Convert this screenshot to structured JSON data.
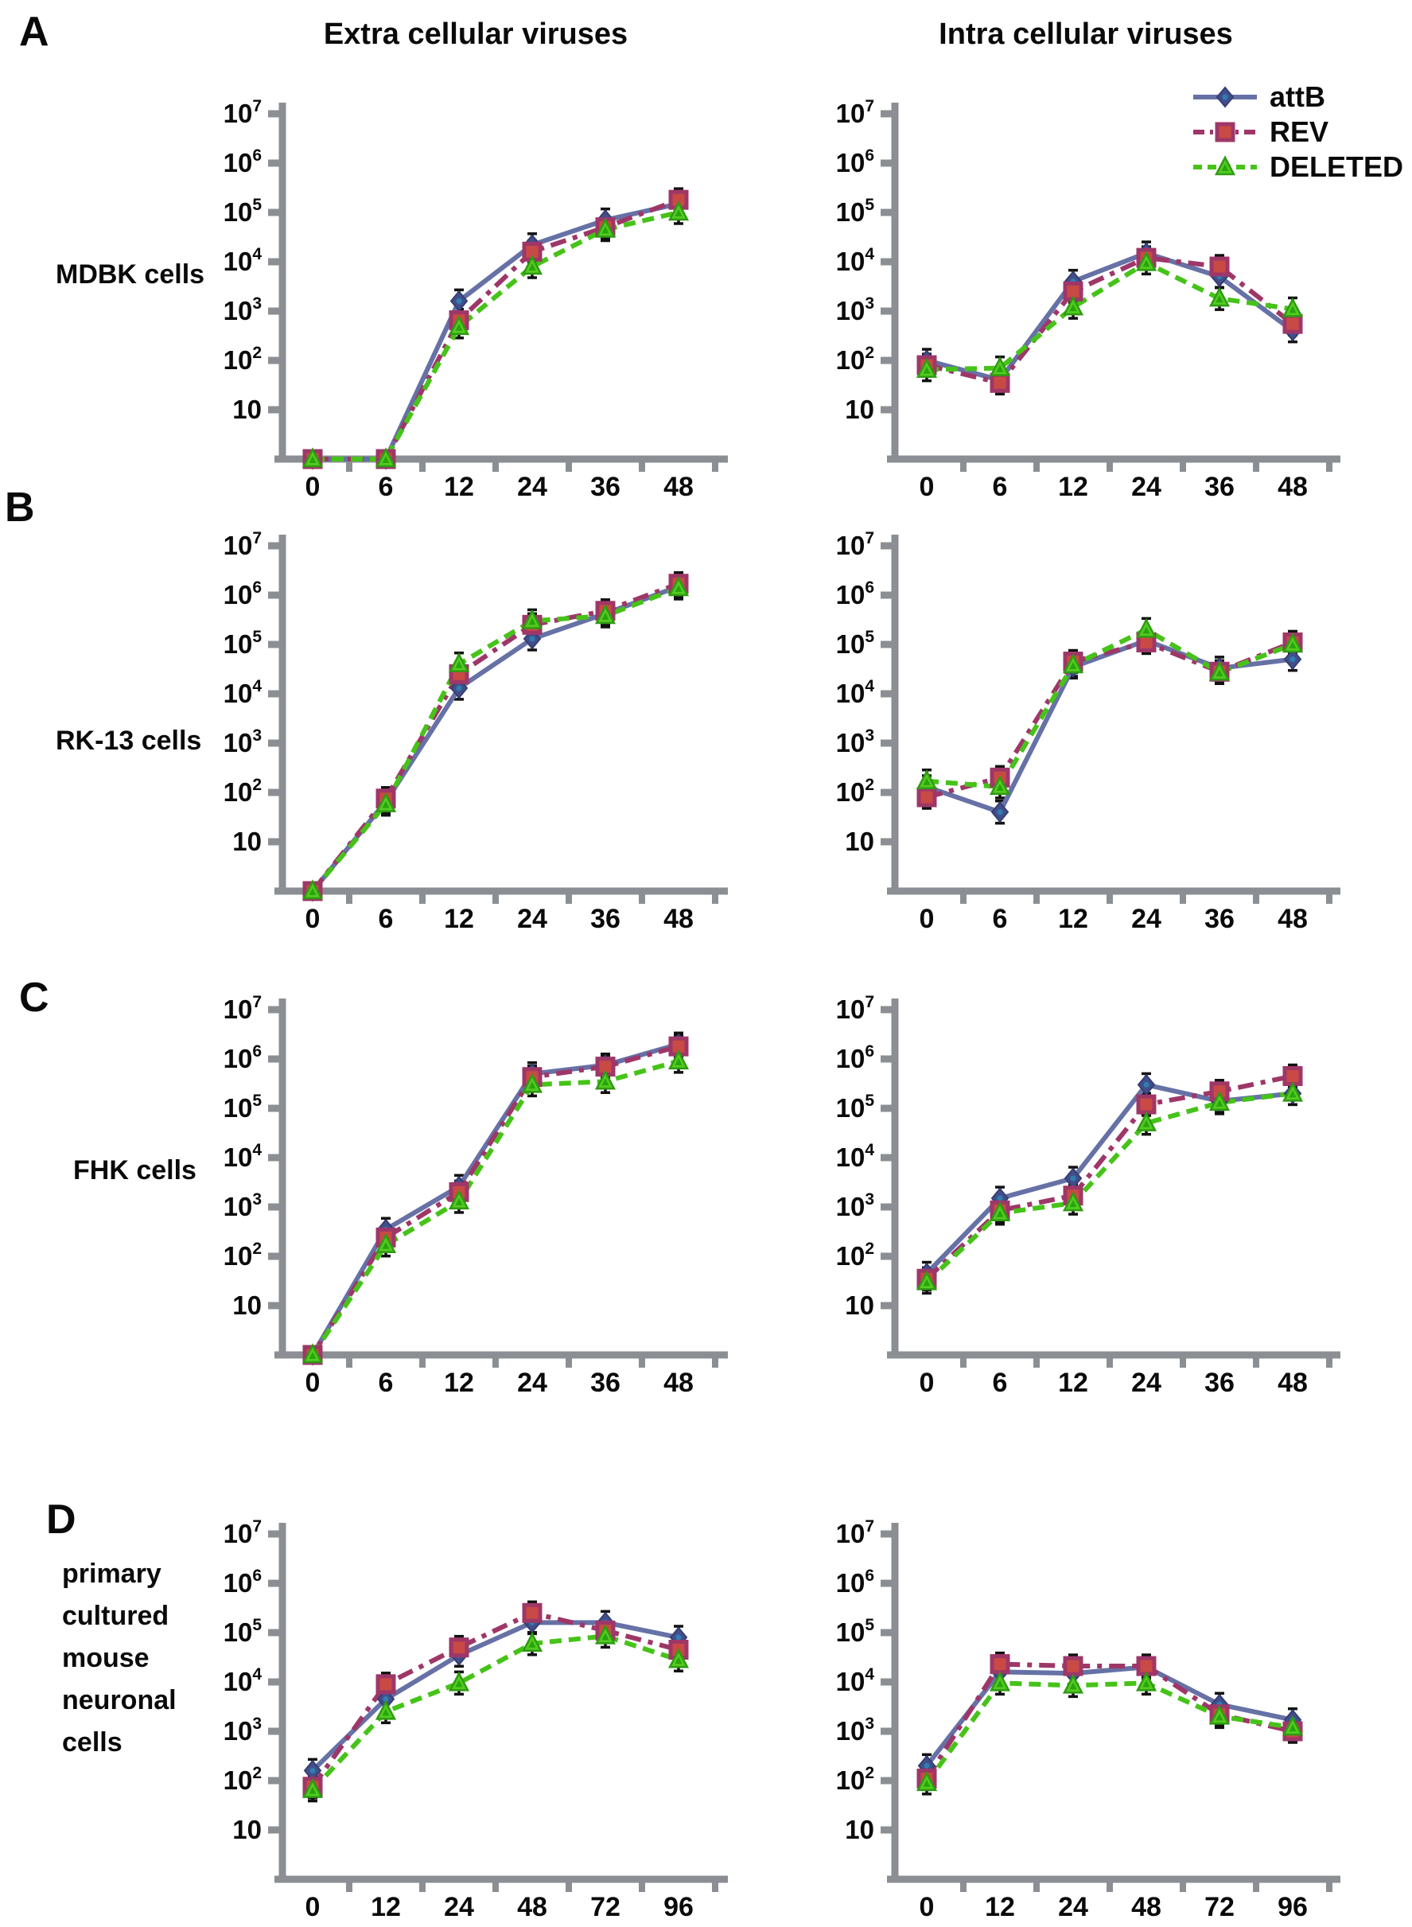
{
  "figure": {
    "panel_letters": [
      "A",
      "B",
      "C",
      "D"
    ],
    "column_titles": [
      "Extra cellular viruses",
      "Intra cellular viruses"
    ],
    "row_labels": [
      "MDBK cells",
      "RK-13 cells",
      "FHK cells"
    ],
    "row_d_label_lines": [
      "primary",
      "cultured",
      "mouse",
      "neuronal",
      "cells"
    ],
    "legend": [
      {
        "name": "attB",
        "line_color": "#6671a6",
        "dash": "solid",
        "marker": "diamond",
        "marker_fill": "#424e8c",
        "marker_stroke": "#353f72",
        "marker_inner": "#2f7fae"
      },
      {
        "name": "REV",
        "line_color": "#9e3768",
        "dash": "dash-dot",
        "marker": "square",
        "marker_fill": "#c94a44",
        "marker_stroke": "#9e3768",
        "marker_inner": "#c94a44"
      },
      {
        "name": "DELETED",
        "line_color": "#46c318",
        "dash": "dashed",
        "marker": "triangle",
        "marker_fill": "#53cb20",
        "marker_stroke": "#2f9b12",
        "marker_inner": "#27a50d"
      }
    ],
    "axis_color": "#8b8f93",
    "error_bar_color": "#111111",
    "y_axis": {
      "scale": "log",
      "range": [
        1,
        10000000
      ],
      "tick_labels": [
        "10",
        "10²",
        "10³",
        "10⁴",
        "10⁵",
        "10⁶",
        "10⁷"
      ]
    },
    "x_axis_hours_abc": [
      0,
      6,
      12,
      24,
      36,
      48
    ],
    "x_axis_hours_d": [
      0,
      12,
      24,
      48,
      72,
      96
    ]
  },
  "chart_data": [
    {
      "panel": "A",
      "cell_line": "MDBK cells",
      "compartment": "Extra cellular viruses",
      "type": "line",
      "ylog": true,
      "ylim": [
        1,
        10000000
      ],
      "grid": false,
      "x": [
        0,
        6,
        12,
        24,
        36,
        48
      ],
      "series": [
        {
          "name": "attB",
          "values": [
            1,
            1,
            1600,
            22000,
            70000,
            150000
          ]
        },
        {
          "name": "REV",
          "values": [
            1,
            1,
            650,
            16000,
            50000,
            180000
          ]
        },
        {
          "name": "DELETED",
          "values": [
            1,
            1,
            480,
            8000,
            45000,
            100000
          ]
        }
      ]
    },
    {
      "panel": "A",
      "cell_line": "MDBK cells",
      "compartment": "Intra cellular viruses",
      "type": "line",
      "ylog": true,
      "ylim": [
        1,
        10000000
      ],
      "grid": false,
      "x": [
        0,
        6,
        12,
        24,
        36,
        48
      ],
      "series": [
        {
          "name": "attB",
          "values": [
            100,
            40,
            4000,
            15000,
            5000,
            400
          ]
        },
        {
          "name": "REV",
          "values": [
            80,
            35,
            2500,
            12000,
            8000,
            550
          ]
        },
        {
          "name": "DELETED",
          "values": [
            65,
            70,
            1200,
            9500,
            1800,
            1100
          ]
        }
      ]
    },
    {
      "panel": "B",
      "cell_line": "RK-13 cells",
      "compartment": "Extra cellular viruses",
      "type": "line",
      "ylog": true,
      "ylim": [
        1,
        10000000
      ],
      "grid": false,
      "x": [
        0,
        6,
        12,
        24,
        36,
        48
      ],
      "series": [
        {
          "name": "attB",
          "values": [
            1,
            65,
            13000,
            130000,
            420000,
            1500000
          ]
        },
        {
          "name": "REV",
          "values": [
            1,
            75,
            25000,
            250000,
            480000,
            1700000
          ]
        },
        {
          "name": "DELETED",
          "values": [
            1,
            58,
            40000,
            300000,
            380000,
            1400000
          ]
        }
      ]
    },
    {
      "panel": "B",
      "cell_line": "RK-13 cells",
      "compartment": "Intra cellular viruses",
      "type": "line",
      "ylog": true,
      "ylim": [
        1,
        10000000
      ],
      "grid": false,
      "x": [
        0,
        6,
        12,
        24,
        36,
        48
      ],
      "series": [
        {
          "name": "attB",
          "values": [
            130,
            40,
            35000,
            120000,
            33000,
            50000
          ]
        },
        {
          "name": "REV",
          "values": [
            80,
            200,
            45000,
            110000,
            28000,
            110000
          ]
        },
        {
          "name": "DELETED",
          "values": [
            170,
            130,
            38000,
            200000,
            27000,
            100000
          ]
        }
      ]
    },
    {
      "panel": "C",
      "cell_line": "FHK cells",
      "compartment": "Extra cellular viruses",
      "type": "line",
      "ylog": true,
      "ylim": [
        1,
        10000000
      ],
      "grid": false,
      "x": [
        0,
        6,
        12,
        24,
        36,
        48
      ],
      "series": [
        {
          "name": "attB",
          "values": [
            1,
            350,
            2600,
            500000,
            750000,
            2000000
          ]
        },
        {
          "name": "REV",
          "values": [
            1,
            240,
            2000,
            430000,
            700000,
            1800000
          ]
        },
        {
          "name": "DELETED",
          "values": [
            1,
            170,
            1300,
            300000,
            350000,
            900000
          ]
        }
      ]
    },
    {
      "panel": "C",
      "cell_line": "FHK cells",
      "compartment": "Intra cellular viruses",
      "type": "line",
      "ylog": true,
      "ylim": [
        1,
        10000000
      ],
      "grid": false,
      "x": [
        0,
        6,
        12,
        24,
        36,
        48
      ],
      "series": [
        {
          "name": "attB",
          "values": [
            45,
            1500,
            3800,
            300000,
            140000,
            200000
          ]
        },
        {
          "name": "REV",
          "values": [
            35,
            850,
            1700,
            120000,
            220000,
            450000
          ]
        },
        {
          "name": "DELETED",
          "values": [
            30,
            750,
            1200,
            50000,
            130000,
            200000
          ]
        }
      ]
    },
    {
      "panel": "D",
      "cell_line": "primary cultured mouse neuronal cells",
      "compartment": "Extra cellular viruses",
      "type": "line",
      "ylog": true,
      "ylim": [
        1,
        10000000
      ],
      "grid": false,
      "x": [
        0,
        12,
        24,
        48,
        72,
        96
      ],
      "series": [
        {
          "name": "attB",
          "values": [
            160,
            4500,
            35000,
            160000,
            160000,
            80000
          ]
        },
        {
          "name": "REV",
          "values": [
            75,
            9000,
            50000,
            250000,
            110000,
            45000
          ]
        },
        {
          "name": "DELETED",
          "values": [
            65,
            2500,
            9500,
            60000,
            85000,
            28000
          ]
        }
      ]
    },
    {
      "panel": "D",
      "cell_line": "primary cultured mouse neuronal cells",
      "compartment": "Intra cellular viruses",
      "type": "line",
      "ylog": true,
      "ylim": [
        1,
        10000000
      ],
      "grid": false,
      "x": [
        0,
        12,
        24,
        48,
        72,
        96
      ],
      "series": [
        {
          "name": "attB",
          "values": [
            200,
            16000,
            15000,
            20000,
            3500,
            1700
          ]
        },
        {
          "name": "REV",
          "values": [
            110,
            23000,
            21000,
            21000,
            2200,
            1000
          ]
        },
        {
          "name": "DELETED",
          "values": [
            90,
            9500,
            8500,
            9500,
            2000,
            1200
          ]
        }
      ]
    }
  ]
}
